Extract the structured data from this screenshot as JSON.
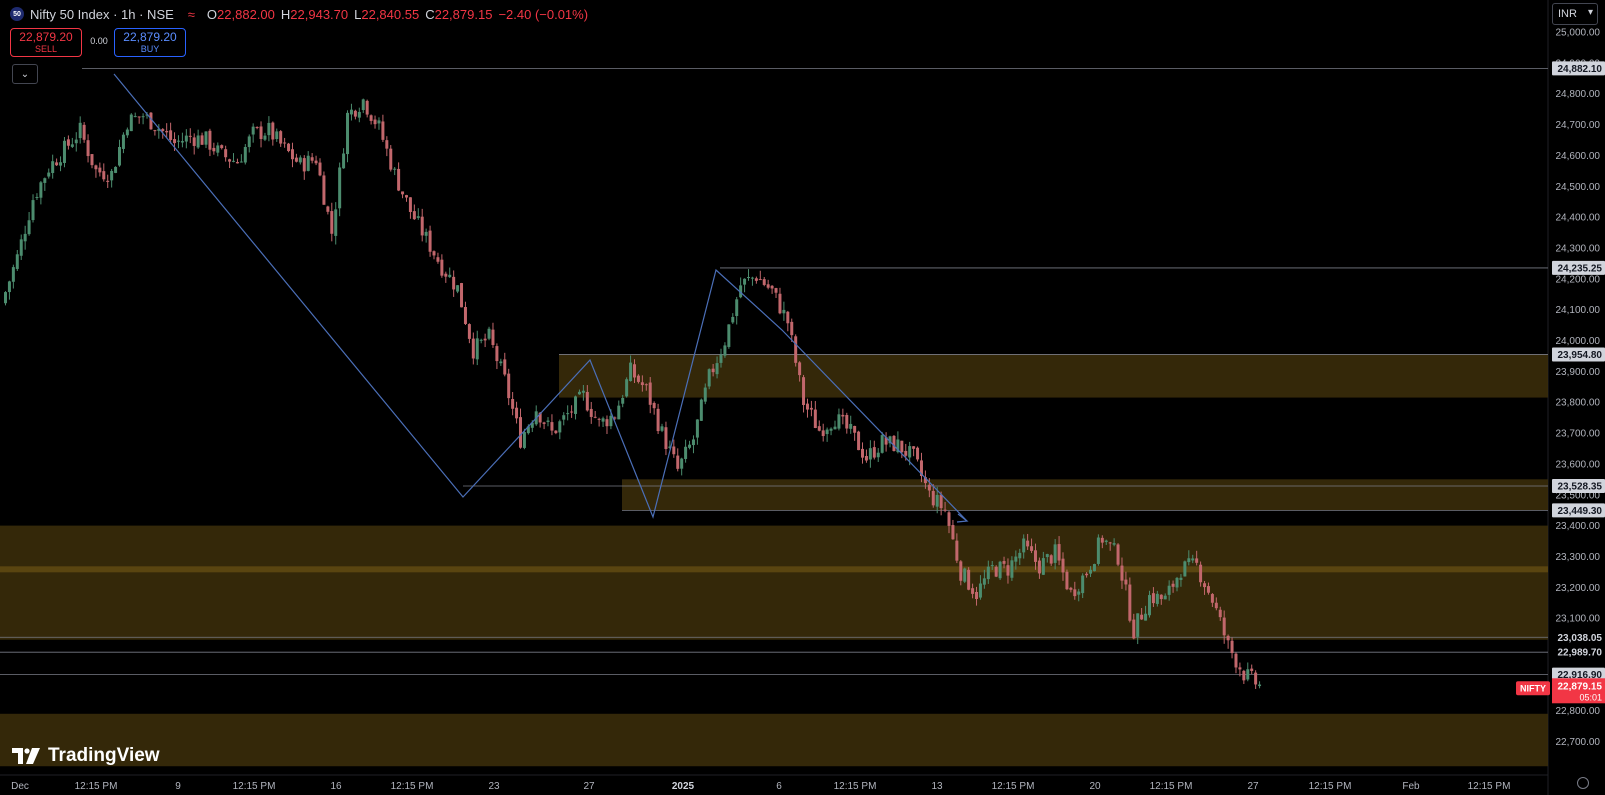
{
  "header": {
    "symbol_icon": "50",
    "title": "Nifty 50 Index · 1h · NSE",
    "indicator_icon": "wave-icon",
    "ohlc": [
      {
        "label": "O",
        "value": "22,882.00"
      },
      {
        "label": "H",
        "value": "22,943.70"
      },
      {
        "label": "L",
        "value": "22,840.55"
      },
      {
        "label": "C",
        "value": "22,879.15"
      },
      {
        "label": "",
        "value": "−2.40 (−0.01%)"
      }
    ]
  },
  "trade": {
    "sell_price": "22,879.20",
    "sell_label": "SELL",
    "spread": "0.00",
    "buy_price": "22,879.20",
    "buy_label": "BUY"
  },
  "collapse_icon": "chevron-down-icon",
  "currency": "INR",
  "logo_text": "TradingView",
  "colors": {
    "background": "#000000",
    "up": "#4c8c6e",
    "down": "#c2676c",
    "zone": "#3d2f0a",
    "trend_line": "#4b6fb8",
    "last_price": "#f23645"
  },
  "chart_data": {
    "type": "candlestick",
    "symbol": "NIFTY",
    "interval": "1h",
    "ylim": [
      22620,
      25050
    ],
    "y_ticks": [
      "25,000.00",
      "24,900.00",
      "24,800.00",
      "24,700.00",
      "24,600.00",
      "24,500.00",
      "24,400.00",
      "24,300.00",
      "24,200.00",
      "24,100.00",
      "24,000.00",
      "23,900.00",
      "23,800.00",
      "23,700.00",
      "23,600.00",
      "23,500.00",
      "23,400.00",
      "23,300.00",
      "23,200.00",
      "23,100.00",
      "23,000.00",
      "22,900.00",
      "22,800.00",
      "22,700.00"
    ],
    "x_ticks": [
      "Dec",
      "12:15 PM",
      "9",
      "12:15 PM",
      "16",
      "12:15 PM",
      "23",
      "27",
      "2025",
      "6",
      "12:15 PM",
      "13",
      "12:15 PM",
      "20",
      "12:15 PM",
      "27",
      "12:15 PM",
      "Feb",
      "12:15 PM"
    ],
    "price_labels": [
      {
        "value": 24882.1,
        "text": "24,882.10"
      },
      {
        "value": 24235.25,
        "text": "24,235.25"
      },
      {
        "value": 23954.8,
        "text": "23,954.80"
      },
      {
        "value": 23528.35,
        "text": "23,528.35"
      },
      {
        "value": 23449.3,
        "text": "23,449.30"
      },
      {
        "value": 23038.05,
        "text": "23,038.05"
      },
      {
        "value": 22989.7,
        "text": "22,989.70"
      },
      {
        "value": 22916.9,
        "text": "22,916.90"
      }
    ],
    "last_price": {
      "symbol": "NIFTY",
      "price": "22,879.15",
      "countdown": "05:01",
      "value": 22879.15
    },
    "zones": [
      {
        "from": 23815,
        "to": 23954.8
      },
      {
        "from": 23449.3,
        "to": 23550
      },
      {
        "from": 23030,
        "to": 23400
      },
      {
        "from": 22620,
        "to": 22790
      }
    ],
    "close_path": [
      24120,
      24270,
      24460,
      24560,
      24620,
      24680,
      24550,
      24540,
      24710,
      24730,
      24690,
      24640,
      24660,
      24650,
      24600,
      24580,
      24670,
      24680,
      24620,
      24570,
      24590,
      24350,
      24730,
      24780,
      24690,
      24540,
      24420,
      24330,
      24240,
      24170,
      23970,
      24010,
      23870,
      23680,
      23780,
      23700,
      23760,
      23820,
      23730,
      23760,
      23900,
      23840,
      23700,
      23580,
      23680,
      23880,
      24000,
      24180,
      24210,
      24160,
      24060,
      23800,
      23710,
      23750,
      23700,
      23620,
      23670,
      23660,
      23620,
      23500,
      23450,
      23250,
      23180,
      23260,
      23260,
      23330,
      23270,
      23310,
      23180,
      23250,
      23360,
      23300,
      23060,
      23170,
      23160,
      23260,
      23270,
      23160,
      23010,
      22920,
      22880
    ],
    "close_path_span": [
      "Dec",
      "27 (Jan)"
    ]
  }
}
